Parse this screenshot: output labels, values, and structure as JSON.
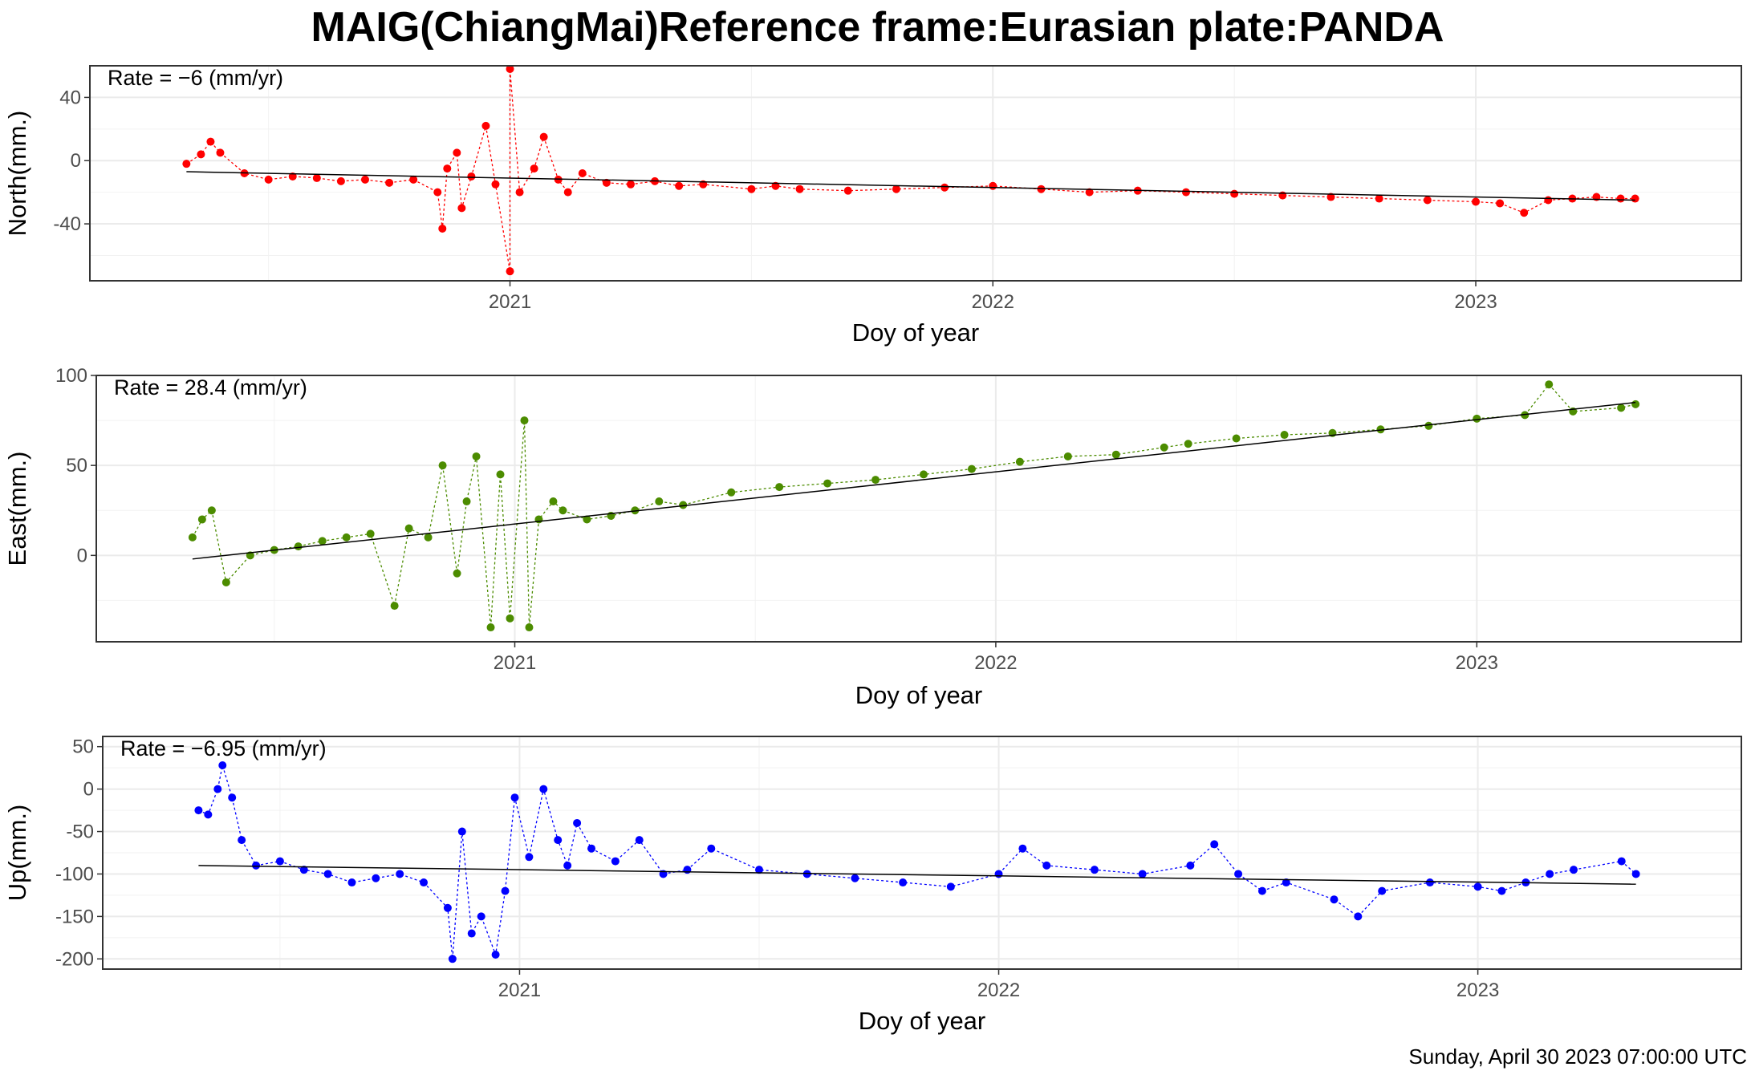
{
  "title": "MAIG(ChiangMai)Reference frame:Eurasian plate:PANDA",
  "timestamp": "Sunday, April 30 2023 07:00:00 UTC",
  "chart_data": [
    {
      "type": "scatter",
      "name": "north",
      "xlabel": "Doy of year",
      "ylabel": "North(mm.)",
      "rate_label": "Rate = −6 (mm/yr)",
      "color": "#FF0000",
      "x_ticks": [
        "2021",
        "2022",
        "2023"
      ],
      "y_ticks": [
        "40",
        "0",
        "-40"
      ],
      "y_tick_values": [
        40,
        0,
        -40
      ],
      "xlim": [
        2020.13,
        2023.55
      ],
      "ylim": [
        -76,
        60
      ],
      "trend": {
        "start": [
          2020.33,
          -7
        ],
        "end": [
          2023.33,
          -25
        ]
      },
      "grid": true,
      "series": [
        {
          "values": [
            [
              2020.33,
              -2
            ],
            [
              2020.36,
              4
            ],
            [
              2020.38,
              12
            ],
            [
              2020.4,
              5
            ],
            [
              2020.45,
              -8
            ],
            [
              2020.5,
              -12
            ],
            [
              2020.55,
              -10
            ],
            [
              2020.6,
              -11
            ],
            [
              2020.65,
              -13
            ],
            [
              2020.7,
              -12
            ],
            [
              2020.75,
              -14
            ],
            [
              2020.8,
              -12
            ],
            [
              2020.85,
              -20
            ],
            [
              2020.86,
              -43
            ],
            [
              2020.87,
              -5
            ],
            [
              2020.89,
              5
            ],
            [
              2020.9,
              -30
            ],
            [
              2020.92,
              -10
            ],
            [
              2020.95,
              22
            ],
            [
              2020.97,
              -15
            ],
            [
              2021.0,
              -70
            ],
            [
              2021.0,
              58
            ],
            [
              2021.02,
              -20
            ],
            [
              2021.05,
              -5
            ],
            [
              2021.07,
              15
            ],
            [
              2021.1,
              -12
            ],
            [
              2021.12,
              -20
            ],
            [
              2021.15,
              -8
            ],
            [
              2021.2,
              -14
            ],
            [
              2021.25,
              -15
            ],
            [
              2021.3,
              -13
            ],
            [
              2021.35,
              -16
            ],
            [
              2021.4,
              -15
            ],
            [
              2021.5,
              -18
            ],
            [
              2021.55,
              -16
            ],
            [
              2021.6,
              -18
            ],
            [
              2021.7,
              -19
            ],
            [
              2021.8,
              -18
            ],
            [
              2021.9,
              -17
            ],
            [
              2022.0,
              -16
            ],
            [
              2022.1,
              -18
            ],
            [
              2022.2,
              -20
            ],
            [
              2022.3,
              -19
            ],
            [
              2022.4,
              -20
            ],
            [
              2022.5,
              -21
            ],
            [
              2022.6,
              -22
            ],
            [
              2022.7,
              -23
            ],
            [
              2022.8,
              -24
            ],
            [
              2022.9,
              -25
            ],
            [
              2023.0,
              -26
            ],
            [
              2023.05,
              -27
            ],
            [
              2023.1,
              -33
            ],
            [
              2023.15,
              -25
            ],
            [
              2023.2,
              -24
            ],
            [
              2023.25,
              -23
            ],
            [
              2023.3,
              -24
            ],
            [
              2023.33,
              -24
            ]
          ]
        }
      ]
    },
    {
      "type": "scatter",
      "name": "east",
      "xlabel": "Doy of year",
      "ylabel": "East(mm.)",
      "rate_label": "Rate = 28.4 (mm/yr)",
      "color": "#4C8C00",
      "x_ticks": [
        "2021",
        "2022",
        "2023"
      ],
      "y_ticks": [
        "100",
        "50",
        "0"
      ],
      "y_tick_values": [
        100,
        50,
        0
      ],
      "xlim": [
        2020.13,
        2023.55
      ],
      "ylim": [
        -48,
        100
      ],
      "trend": {
        "start": [
          2020.33,
          -2
        ],
        "end": [
          2023.33,
          85
        ]
      },
      "grid": true,
      "series": [
        {
          "values": [
            [
              2020.33,
              10
            ],
            [
              2020.35,
              20
            ],
            [
              2020.37,
              25
            ],
            [
              2020.4,
              -15
            ],
            [
              2020.45,
              0
            ],
            [
              2020.5,
              3
            ],
            [
              2020.55,
              5
            ],
            [
              2020.6,
              8
            ],
            [
              2020.65,
              10
            ],
            [
              2020.7,
              12
            ],
            [
              2020.75,
              -28
            ],
            [
              2020.78,
              15
            ],
            [
              2020.82,
              10
            ],
            [
              2020.85,
              50
            ],
            [
              2020.88,
              -10
            ],
            [
              2020.9,
              30
            ],
            [
              2020.92,
              55
            ],
            [
              2020.95,
              -40
            ],
            [
              2020.97,
              45
            ],
            [
              2020.99,
              -35
            ],
            [
              2021.02,
              75
            ],
            [
              2021.03,
              -40
            ],
            [
              2021.05,
              20
            ],
            [
              2021.08,
              30
            ],
            [
              2021.1,
              25
            ],
            [
              2021.15,
              20
            ],
            [
              2021.2,
              22
            ],
            [
              2021.25,
              25
            ],
            [
              2021.3,
              30
            ],
            [
              2021.35,
              28
            ],
            [
              2021.45,
              35
            ],
            [
              2021.55,
              38
            ],
            [
              2021.65,
              40
            ],
            [
              2021.75,
              42
            ],
            [
              2021.85,
              45
            ],
            [
              2021.95,
              48
            ],
            [
              2022.05,
              52
            ],
            [
              2022.15,
              55
            ],
            [
              2022.25,
              56
            ],
            [
              2022.35,
              60
            ],
            [
              2022.4,
              62
            ],
            [
              2022.5,
              65
            ],
            [
              2022.6,
              67
            ],
            [
              2022.7,
              68
            ],
            [
              2022.8,
              70
            ],
            [
              2022.9,
              72
            ],
            [
              2023.0,
              76
            ],
            [
              2023.1,
              78
            ],
            [
              2023.15,
              95
            ],
            [
              2023.2,
              80
            ],
            [
              2023.3,
              82
            ],
            [
              2023.33,
              84
            ]
          ]
        }
      ]
    },
    {
      "type": "scatter",
      "name": "up",
      "xlabel": "Doy of year",
      "ylabel": "Up(mm.)",
      "rate_label": "Rate = −6.95 (mm/yr)",
      "color": "#0000FF",
      "x_ticks": [
        "2021",
        "2022",
        "2023"
      ],
      "y_ticks": [
        "50",
        "0",
        "-50",
        "-100",
        "-150",
        "-200"
      ],
      "y_tick_values": [
        50,
        0,
        -50,
        -100,
        -150,
        -200
      ],
      "xlim": [
        2020.13,
        2023.55
      ],
      "ylim": [
        -212,
        62
      ],
      "trend": {
        "start": [
          2020.33,
          -90
        ],
        "end": [
          2023.33,
          -112
        ]
      },
      "grid": true,
      "series": [
        {
          "values": [
            [
              2020.33,
              -25
            ],
            [
              2020.35,
              -30
            ],
            [
              2020.37,
              0
            ],
            [
              2020.38,
              28
            ],
            [
              2020.4,
              -10
            ],
            [
              2020.42,
              -60
            ],
            [
              2020.45,
              -90
            ],
            [
              2020.5,
              -85
            ],
            [
              2020.55,
              -95
            ],
            [
              2020.6,
              -100
            ],
            [
              2020.65,
              -110
            ],
            [
              2020.7,
              -105
            ],
            [
              2020.75,
              -100
            ],
            [
              2020.8,
              -110
            ],
            [
              2020.85,
              -140
            ],
            [
              2020.86,
              -200
            ],
            [
              2020.88,
              -50
            ],
            [
              2020.9,
              -170
            ],
            [
              2020.92,
              -150
            ],
            [
              2020.95,
              -195
            ],
            [
              2020.97,
              -120
            ],
            [
              2020.99,
              -10
            ],
            [
              2021.02,
              -80
            ],
            [
              2021.05,
              0
            ],
            [
              2021.08,
              -60
            ],
            [
              2021.1,
              -90
            ],
            [
              2021.12,
              -40
            ],
            [
              2021.15,
              -70
            ],
            [
              2021.2,
              -85
            ],
            [
              2021.25,
              -60
            ],
            [
              2021.3,
              -100
            ],
            [
              2021.35,
              -95
            ],
            [
              2021.4,
              -70
            ],
            [
              2021.5,
              -95
            ],
            [
              2021.6,
              -100
            ],
            [
              2021.7,
              -105
            ],
            [
              2021.8,
              -110
            ],
            [
              2021.9,
              -115
            ],
            [
              2022.0,
              -100
            ],
            [
              2022.05,
              -70
            ],
            [
              2022.1,
              -90
            ],
            [
              2022.2,
              -95
            ],
            [
              2022.3,
              -100
            ],
            [
              2022.4,
              -90
            ],
            [
              2022.45,
              -65
            ],
            [
              2022.5,
              -100
            ],
            [
              2022.55,
              -120
            ],
            [
              2022.6,
              -110
            ],
            [
              2022.7,
              -130
            ],
            [
              2022.75,
              -150
            ],
            [
              2022.8,
              -120
            ],
            [
              2022.9,
              -110
            ],
            [
              2023.0,
              -115
            ],
            [
              2023.05,
              -120
            ],
            [
              2023.1,
              -110
            ],
            [
              2023.15,
              -100
            ],
            [
              2023.2,
              -95
            ],
            [
              2023.3,
              -85
            ],
            [
              2023.33,
              -100
            ]
          ]
        }
      ]
    }
  ]
}
